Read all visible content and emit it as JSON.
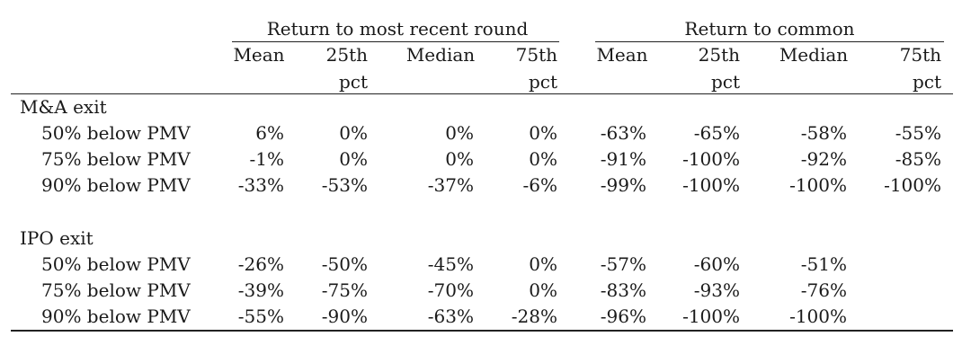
{
  "table": {
    "group_headers": [
      "Return to most recent round",
      "Return to common"
    ],
    "columns": [
      {
        "line1": "Mean",
        "line2": ""
      },
      {
        "line1": "25th",
        "line2": "pct"
      },
      {
        "line1": "Median",
        "line2": ""
      },
      {
        "line1": "75th",
        "line2": "pct"
      },
      {
        "line1": "Mean",
        "line2": ""
      },
      {
        "line1": "25th",
        "line2": "pct"
      },
      {
        "line1": "Median",
        "line2": ""
      },
      {
        "line1": "75th",
        "line2": "pct"
      }
    ],
    "sections": [
      {
        "title": "M&A exit",
        "rows": [
          {
            "label": "50% below PMV",
            "values": [
              "6%",
              "0%",
              "0%",
              "0%",
              "-63%",
              "-65%",
              "-58%",
              "-55%"
            ]
          },
          {
            "label": "75% below PMV",
            "values": [
              "-1%",
              "0%",
              "0%",
              "0%",
              "-91%",
              "-100%",
              "-92%",
              "-85%"
            ]
          },
          {
            "label": "90% below PMV",
            "values": [
              "-33%",
              "-53%",
              "-37%",
              "-6%",
              "-99%",
              "-100%",
              "-100%",
              "-100%"
            ]
          }
        ]
      },
      {
        "title": "IPO exit",
        "rows": [
          {
            "label": "50% below PMV",
            "values": [
              "-26%",
              "-50%",
              "-45%",
              "0%",
              "-57%",
              "-60%",
              "-51%",
              ""
            ]
          },
          {
            "label": "75% below PMV",
            "values": [
              "-39%",
              "-75%",
              "-70%",
              "0%",
              "-83%",
              "-93%",
              "-76%",
              ""
            ]
          },
          {
            "label": "90% below PMV",
            "values": [
              "-55%",
              "-90%",
              "-63%",
              "-28%",
              "-96%",
              "-100%",
              "-100%",
              ""
            ]
          }
        ]
      }
    ]
  }
}
